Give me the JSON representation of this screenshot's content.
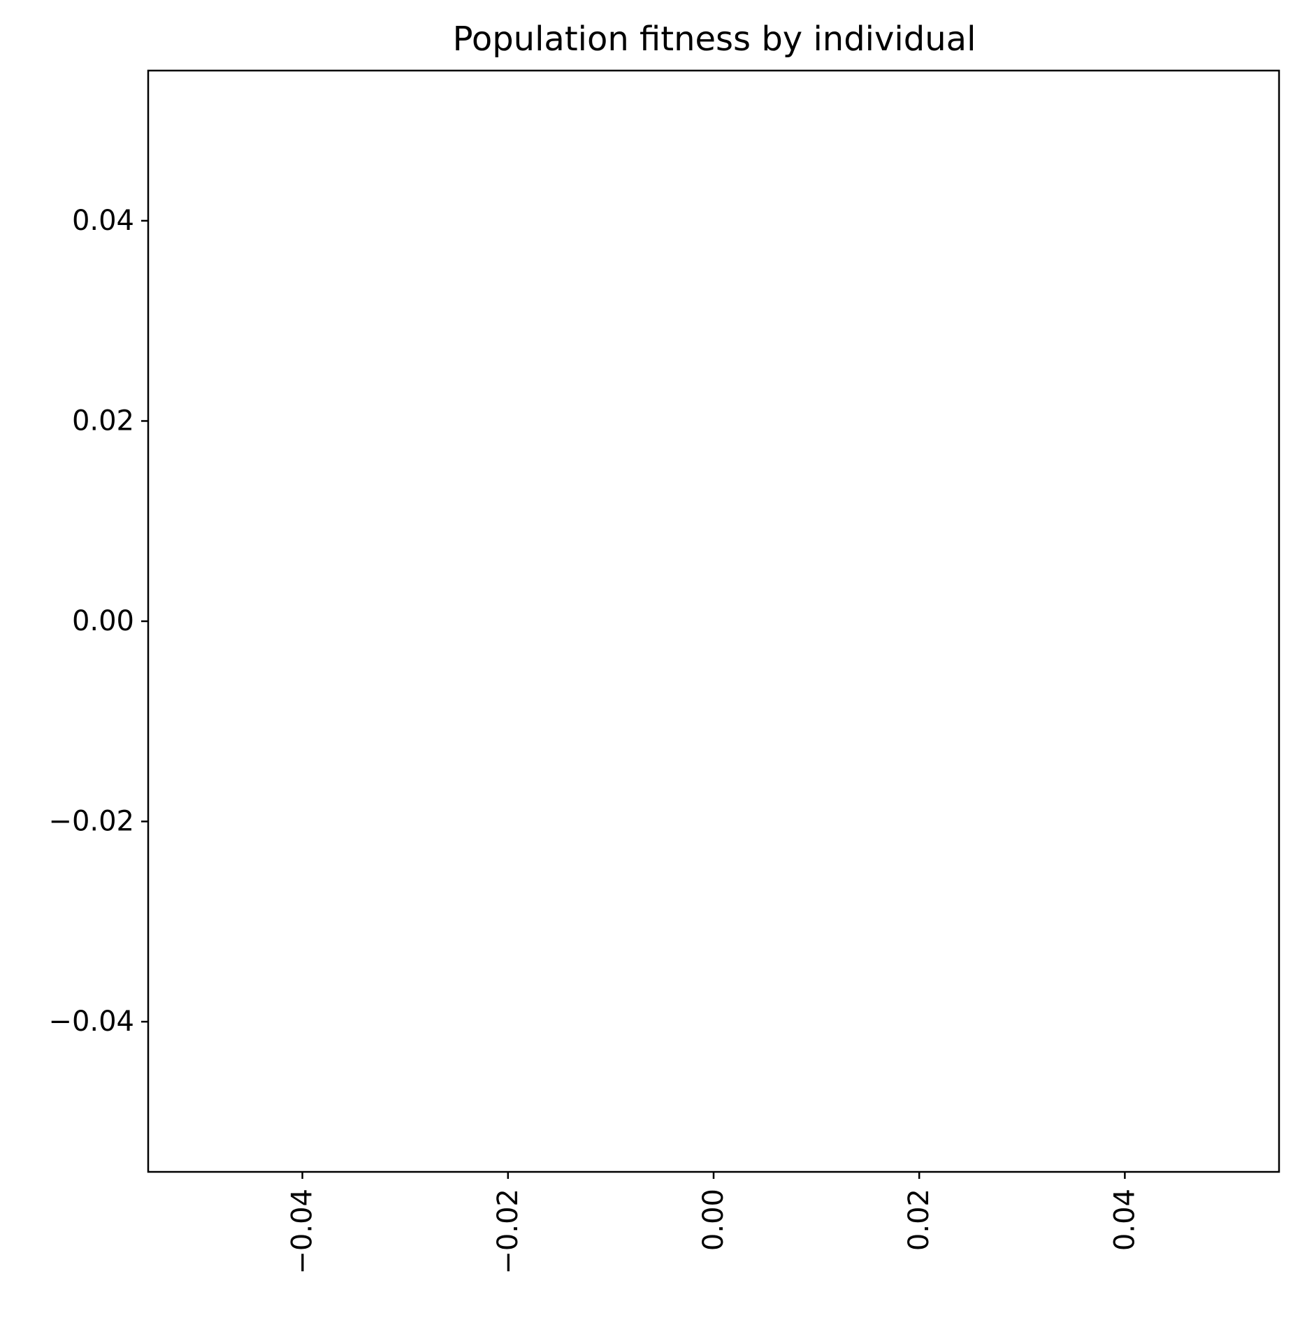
{
  "chart_data": {
    "type": "bar",
    "title": "Population fitness by individual",
    "xlabel": "",
    "ylabel": "",
    "categories": [],
    "values": [],
    "xlim": [
      -0.055,
      0.055
    ],
    "ylim": [
      -0.055,
      0.055
    ],
    "x_ticks": [
      {
        "value": -0.04,
        "label": "−0.04"
      },
      {
        "value": -0.02,
        "label": "−0.02"
      },
      {
        "value": 0.0,
        "label": "0.00"
      },
      {
        "value": 0.02,
        "label": "0.02"
      },
      {
        "value": 0.04,
        "label": "0.04"
      }
    ],
    "y_ticks": [
      {
        "value": 0.04,
        "label": "0.04"
      },
      {
        "value": 0.02,
        "label": "0.02"
      },
      {
        "value": 0.0,
        "label": "0.00"
      },
      {
        "value": -0.02,
        "label": "−0.02"
      },
      {
        "value": -0.04,
        "label": "−0.04"
      }
    ],
    "x_tick_rotation": "vertical",
    "grid": false,
    "colors": {
      "axes": "#000000",
      "background": "#ffffff"
    }
  }
}
